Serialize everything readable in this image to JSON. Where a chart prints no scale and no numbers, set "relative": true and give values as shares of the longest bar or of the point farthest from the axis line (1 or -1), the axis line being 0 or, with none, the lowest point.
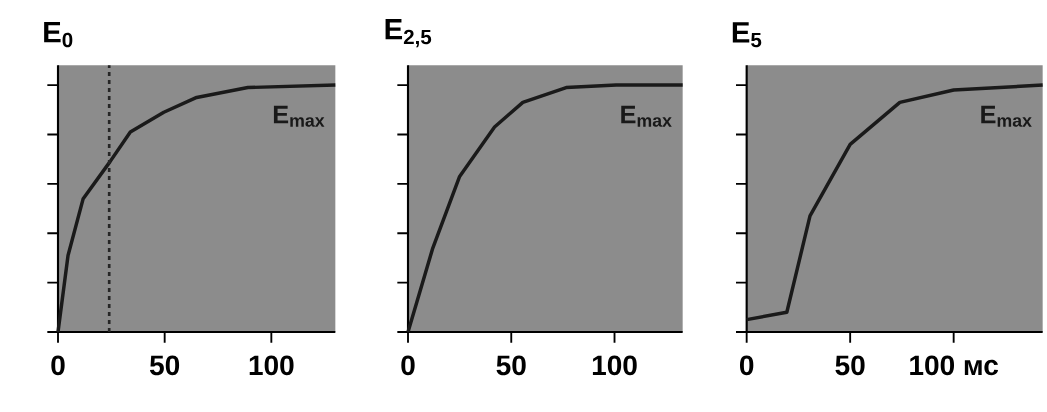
{
  "chart_data": [
    {
      "type": "line",
      "title": "E$_{0}$",
      "x": [
        0,
        4.7,
        11.8,
        24.4,
        33.9,
        49.6,
        65,
        89,
        130
      ],
      "series": [
        {
          "color": "#1a1a1a",
          "values": [
            0,
            0.31,
            0.54,
            0.69,
            0.81,
            0.89,
            0.95,
            0.99,
            1
          ]
        }
      ],
      "xlim": [
        0,
        130
      ],
      "xticks": [
        0,
        50,
        100
      ],
      "relative": true,
      "marker": "none",
      "line_style": "solid",
      "ref_lines": [
        {
          "axis": "x",
          "value": 24,
          "line_style": "dashed"
        }
      ],
      "annotations": [
        "E$_{max}$"
      ]
    },
    {
      "type": "line",
      "title": "E$_{2,5}$",
      "x": [
        0,
        12,
        25,
        41.9,
        55.6,
        76.6,
        100.8,
        133
      ],
      "series": [
        {
          "color": "#1a1a1a",
          "values": [
            0,
            0.34,
            0.63,
            0.83,
            0.93,
            0.99,
            1,
            1
          ]
        }
      ],
      "xlim": [
        0,
        133
      ],
      "xticks": [
        0,
        50,
        100
      ],
      "relative": true,
      "marker": "none",
      "line_style": "solid",
      "annotations": [
        "E$_{max}$"
      ]
    },
    {
      "type": "line",
      "title": "E$_{5}$",
      "x": [
        0,
        19.4,
        30.6,
        50,
        74,
        100,
        143
      ],
      "series": [
        {
          "color": "#1a1a1a",
          "values": [
            0.05,
            0.08,
            0.47,
            0.76,
            0.93,
            0.98,
            1
          ]
        }
      ],
      "xlim": [
        0,
        143
      ],
      "xticks": [
        0,
        50,
        {
          "value": 100,
          "label": "100 мс"
        }
      ],
      "relative": true,
      "marker": "none",
      "line_style": "solid",
      "annotations": [
        "E$_{max}$"
      ]
    }
  ]
}
